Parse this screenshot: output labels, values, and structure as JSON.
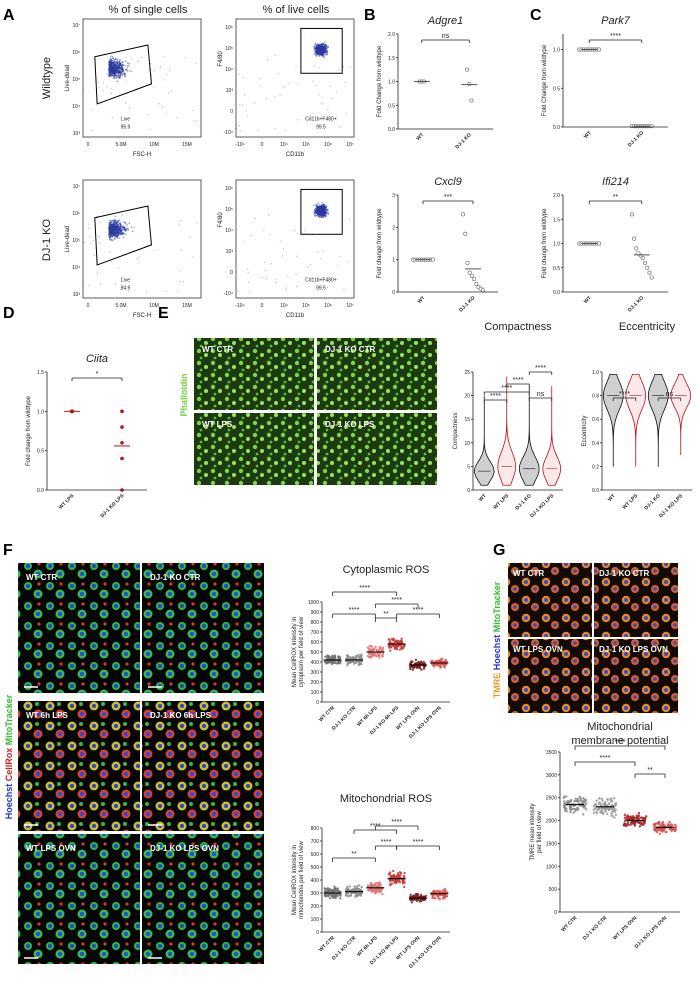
{
  "letters": {
    "A": "A",
    "B": "B",
    "C": "C",
    "D": "D",
    "E": "E",
    "F": "F",
    "G": "G"
  },
  "panelA": {
    "col1_title": "% of single cells",
    "col2_title": "% of live cells",
    "row_wt": "Wildtype",
    "row_ko": "DJ-1 KO",
    "ylabel1": "Live-dead",
    "ylabel2": "F4/80",
    "xlabel1": "FSC-H",
    "xlabel2": "CD11b",
    "gate_live": "Live",
    "gate_cd": "Cd11b+F480+",
    "gate_cd_ko": "Cd11b+F480+",
    "wt_live": "95.9",
    "wt_cd": "99.5",
    "ko_live": "94.9",
    "ko_cd": "99.5",
    "fsc_ticks": [
      "0",
      "5.0M",
      "10M",
      "15M"
    ],
    "ld_ticks": [
      "10⁷",
      "10⁶",
      "10⁵",
      "10⁴",
      "10³"
    ],
    "f480_ticks": [
      "10⁶",
      "10⁵",
      "10⁴",
      "10³",
      "0",
      "-10⁴"
    ],
    "cd11b_ticks": [
      "-10⁴",
      "0",
      "10⁴",
      "10⁵",
      "10⁶",
      "10⁷"
    ]
  },
  "panelB": {
    "genes": [
      "Adgre1",
      "Cxcl9"
    ],
    "ylabel": "Fold Change from wildtype",
    "ylabel2": "Fold change from wildtype",
    "groups": [
      "WT",
      "DJ-1 KO"
    ],
    "sig": [
      "ns",
      "***"
    ],
    "yticks_adgre1": [
      "0.0",
      "0.5",
      "1.0",
      "1.5",
      "2.0"
    ],
    "yticks_cxcl9": [
      "0",
      "1",
      "2",
      "3"
    ]
  },
  "panelC": {
    "genes": [
      "Park7",
      "Ifi214"
    ],
    "ylabel": "Fold Change from wildtype",
    "ylabel2": "Fold change from wildtype",
    "groups": [
      "WT",
      "DJ-1 KO"
    ],
    "sig": [
      "****",
      "**"
    ],
    "yticks_park7": [
      "0.0",
      "0.5",
      "1.0"
    ],
    "yticks_ifi214": [
      "0.0",
      "0.5",
      "1.0",
      "1.5",
      "2.0"
    ]
  },
  "panelD": {
    "gene": "Ciita",
    "ylabel": "Fold change from wildtype",
    "groups": [
      "WT LPS",
      "DJ-1 KO LPS"
    ],
    "sig": "*",
    "yticks": [
      "0.0",
      "0.5",
      "1.0",
      "1.5"
    ]
  },
  "panelE": {
    "stain": "Phalloidin",
    "images": [
      "WT CTR",
      "DJ-1 KO CTR",
      "WT LPS",
      "DJ-1 KO LPS"
    ],
    "compactness_title": "Compactness",
    "eccentricity_title": "Eccentricity",
    "compactness_ylabel": "Compactness",
    "eccentricity_ylabel": "Eccentricity",
    "groups": [
      "WT",
      "WT LPS",
      "DJ-1 KO",
      "DJ-1 KO LPS"
    ],
    "compactness_yticks": [
      "0",
      "5",
      "10",
      "15",
      "20",
      "25"
    ],
    "eccentricity_yticks": [
      "0.0",
      "0.2",
      "0.4",
      "0.6",
      "0.8",
      "1.0"
    ],
    "compactness_sig": [
      "****",
      "****",
      "****",
      "****",
      "ns"
    ],
    "eccentricity_sig": [
      "****",
      "ns"
    ]
  },
  "panelF": {
    "stain_hoechst": "Hoechst",
    "stain_cellrox": "CellRox",
    "stain_mito": "MitoTracker",
    "images": [
      "WT CTR",
      "DJ-1 KO CTR",
      "WT 6h LPS",
      "DJ-1 KO 6h LPS",
      "WT LPS OVN",
      "DJ-1 KO LPS OVN"
    ],
    "cyto_title": "Cytoplasmic ROS",
    "mito_title": "Mitochondrial ROS",
    "cyto_ylabel": [
      "Mean CellROX intensity in",
      "cytoplasm per field of view"
    ],
    "mito_ylabel": [
      "Mean CellROX intensity in",
      "mitochondria per field of view"
    ],
    "groups": [
      "WT CTR",
      "DJ-1 KO CTR",
      "WT 6h LPS",
      "DJ-1 KO 6h LPS",
      "WT LPS OVN",
      "DJ-1 KO LPS OVN"
    ],
    "cyto_yticks": [
      "0",
      "100",
      "200",
      "300",
      "400",
      "500",
      "600",
      "700",
      "800",
      "900",
      "1000"
    ],
    "mito_yticks": [
      "0",
      "100",
      "200",
      "300",
      "400",
      "500",
      "600",
      "700",
      "800"
    ],
    "cyto_sig": [
      "****",
      "****",
      "****",
      "**",
      "****"
    ],
    "mito_sig": [
      "**",
      "****",
      "****",
      "****",
      "****"
    ]
  },
  "panelG": {
    "stain_tmre": "TMRE",
    "stain_hoechst": "Hoechst",
    "stain_mito": "MitoTracker",
    "images": [
      "WT CTR",
      "DJ-1 KO CTR",
      "WT LPS OVN",
      "DJ-1 KO LPS OVN"
    ],
    "title_l1": "Mitochondrial",
    "title_l2": "membrane potential",
    "ylabel": [
      "TMRE mean intensity",
      "per field of view"
    ],
    "groups": [
      "WT CTR",
      "DJ-1 KO CTR",
      "WT LPS OVN",
      "DJ-1 KO LPS OVN"
    ],
    "yticks": [
      "0",
      "500",
      "1000",
      "1500",
      "2000",
      "2500",
      "3000",
      "3500"
    ],
    "sig": [
      "****",
      "****",
      "**"
    ]
  },
  "chart_data": [
    {
      "type": "scatter",
      "title": "Adgre1",
      "categories": [
        "WT",
        "DJ-1 KO"
      ],
      "series": [
        {
          "values": [
            [
              1.0,
              1.0,
              1.0
            ],
            [
              1.25,
              0.95,
              0.6
            ]
          ]
        }
      ],
      "ylim": [
        0,
        2.0
      ],
      "ylabel": "Fold Change from wildtype"
    },
    {
      "type": "scatter",
      "title": "Park7",
      "categories": [
        "WT",
        "DJ-1 KO"
      ],
      "series": [
        {
          "values": [
            [
              1,
              1,
              1,
              1,
              1,
              1,
              1,
              1,
              1,
              1
            ],
            [
              0.01,
              0.01,
              0.01,
              0.01,
              0.01,
              0.01,
              0.01,
              0.01,
              0.01,
              0.01
            ]
          ]
        }
      ],
      "ylim": [
        0,
        1.2
      ],
      "ylabel": "Fold Change from wildtype"
    },
    {
      "type": "scatter",
      "title": "Cxcl9",
      "categories": [
        "WT",
        "DJ-1 KO"
      ],
      "series": [
        {
          "values": [
            [
              1,
              1,
              1,
              1,
              1,
              1,
              1,
              1,
              1,
              1
            ],
            [
              2.4,
              1.8,
              0.9,
              0.6,
              0.5,
              0.4,
              0.25,
              0.15,
              0.1,
              0.05
            ]
          ]
        }
      ],
      "ylim": [
        0,
        3
      ],
      "ylabel": "Fold change from wildtype"
    },
    {
      "type": "scatter",
      "title": "Ifi214",
      "categories": [
        "WT",
        "DJ-1 KO"
      ],
      "series": [
        {
          "values": [
            [
              1,
              1,
              1,
              1,
              1,
              1,
              1,
              1,
              1,
              1
            ],
            [
              1.6,
              1.1,
              0.9,
              0.8,
              0.75,
              0.7,
              0.6,
              0.5,
              0.4,
              0.3
            ]
          ]
        }
      ],
      "ylim": [
        0,
        2.0
      ],
      "ylabel": "Fold change from wildtype"
    },
    {
      "type": "scatter",
      "title": "Ciita",
      "categories": [
        "WT LPS",
        "DJ-1 KO LPS"
      ],
      "series": [
        {
          "values": [
            [
              1,
              1,
              1,
              1,
              1
            ],
            [
              1.0,
              0.8,
              0.6,
              0.4,
              0.0
            ]
          ]
        }
      ],
      "ylim": [
        0,
        1.5
      ],
      "ylabel": "Fold change from wildtype"
    }
  ]
}
